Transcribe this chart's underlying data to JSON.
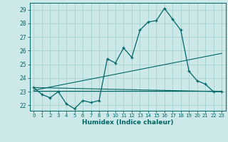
{
  "xlabel": "Humidex (Indice chaleur)",
  "ylabel": "",
  "bg_color": "#cce8e8",
  "grid_color": "#aad4d4",
  "line_color": "#006666",
  "xlim": [
    -0.5,
    23.5
  ],
  "ylim": [
    21.6,
    29.5
  ],
  "xticks": [
    0,
    1,
    2,
    3,
    4,
    5,
    6,
    7,
    8,
    9,
    10,
    11,
    12,
    13,
    14,
    15,
    16,
    17,
    18,
    19,
    20,
    21,
    22,
    23
  ],
  "yticks": [
    22,
    23,
    24,
    25,
    26,
    27,
    28,
    29
  ],
  "curve1_x": [
    0,
    1,
    2,
    3,
    4,
    5,
    6,
    7,
    8,
    9,
    10,
    11,
    12,
    13,
    14,
    15,
    16,
    17,
    18,
    19,
    20,
    21,
    22,
    23
  ],
  "curve1_y": [
    23.3,
    22.8,
    22.55,
    23.0,
    22.1,
    21.75,
    22.35,
    22.2,
    22.35,
    25.4,
    25.1,
    26.2,
    25.5,
    27.5,
    28.1,
    28.2,
    29.1,
    28.3,
    27.5,
    24.5,
    23.8,
    23.55,
    23.0,
    23.0
  ],
  "line1_x": [
    0,
    23
  ],
  "line1_y": [
    23.05,
    23.05
  ],
  "line2_x": [
    0,
    23
  ],
  "line2_y": [
    23.3,
    23.0
  ],
  "line3_x": [
    0,
    23
  ],
  "line3_y": [
    23.1,
    25.8
  ]
}
